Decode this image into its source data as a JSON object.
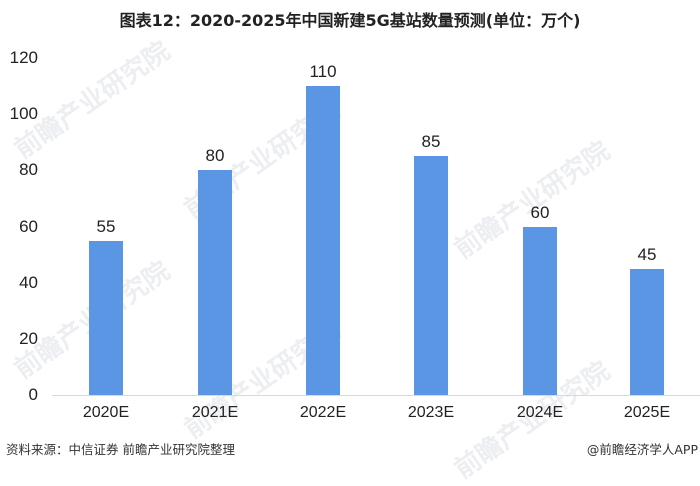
{
  "title": "图表12：2020-2025年中国新建5G基站数量预测(单位：万个)",
  "chart_data": {
    "type": "bar",
    "title": "图表12：2020-2025年中国新建5G基站数量预测(单位：万个)",
    "categories": [
      "2020E",
      "2021E",
      "2022E",
      "2023E",
      "2024E",
      "2025E"
    ],
    "values": [
      55,
      80,
      110,
      85,
      60,
      45
    ],
    "xlabel": "",
    "ylabel": "",
    "unit": "万个",
    "ylim": [
      0,
      120
    ],
    "yticks": [
      0,
      20,
      40,
      60,
      80,
      100,
      120
    ],
    "grid": false,
    "legend": null,
    "bar_color": "#5B96E4",
    "data_labels": true
  },
  "watermark": "前瞻产业研究院",
  "footer": {
    "source": "资料来源：中信证券 前瞻产业研究院整理",
    "credit": "@前瞻经济学人APP"
  }
}
